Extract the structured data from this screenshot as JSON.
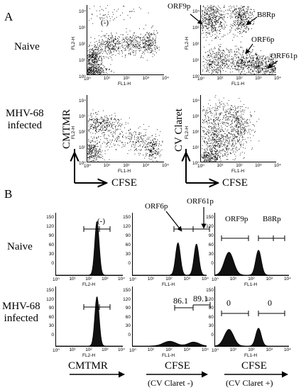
{
  "panel_letters": {
    "a": "A",
    "b": "B"
  },
  "row_labels": {
    "naive": "Naive",
    "infected_line1": "MHV-68",
    "infected_line2": "infected"
  },
  "a_axes": {
    "y_cmtmr": "CMTMR",
    "y_cvclaret": "CV Claret",
    "x_cfse_left": "CFSE",
    "x_cfse_right": "CFSE",
    "fl2": "FL2-H",
    "fl1": "FL1-H",
    "xticks": [
      "10⁰",
      "10¹",
      "10²",
      "10³",
      "10⁴"
    ],
    "yticks": [
      "10⁴",
      "10³",
      "10²",
      "10¹",
      "10⁰"
    ]
  },
  "a_callouts": {
    "neg": "(-)",
    "orf9p": "ORF9p",
    "b8rp": "B8Rp",
    "orf6p": "ORF6p",
    "orf61p": "ORF61p"
  },
  "b_axes": {
    "xticks": [
      "10⁰",
      "10¹",
      "10²",
      "10³",
      "10⁴"
    ],
    "yticks_tall": [
      "150",
      "120",
      "90",
      "60",
      "30",
      "0"
    ],
    "yticks_short": [
      "150",
      "120",
      "90",
      "60",
      "30",
      "0"
    ],
    "fl2": "FL2-H",
    "fl1": "FL1-H",
    "bottom_cmtmr": "CMTMR",
    "bottom_cfse1": "CFSE",
    "bottom_cfse1_sub": "(CV Claret -)",
    "bottom_cfse2": "CFSE",
    "bottom_cfse2_sub": "(CV Claret +)"
  },
  "b_callouts": {
    "neg": "(-)",
    "orf6p": "ORF6p",
    "orf61p": "ORF61p",
    "orf9p": "ORF9p",
    "b8rp": "B8Rp",
    "v861": "86.1",
    "v891": "89.1",
    "zero1": "0",
    "zero2": "0"
  },
  "histograms": [
    {
      "id": "naive-cmtmr",
      "peaks": [
        {
          "log": 2.45,
          "height": 130,
          "width": 0.13
        }
      ]
    },
    {
      "id": "naive-cfse-neg",
      "peaks": [
        {
          "log": 2.45,
          "height": 78,
          "width": 0.13
        },
        {
          "log": 3.45,
          "height": 75,
          "width": 0.13
        }
      ]
    },
    {
      "id": "naive-cfse-pos",
      "peaks": [
        {
          "log": 0.75,
          "height": 55,
          "width": 0.25
        },
        {
          "log": 2.35,
          "height": 60,
          "width": 0.15
        }
      ]
    },
    {
      "id": "inf-cmtmr",
      "peaks": [
        {
          "log": 2.45,
          "height": 125,
          "width": 0.13
        }
      ]
    },
    {
      "id": "inf-cfse-neg",
      "peaks": [
        {
          "log": 2.0,
          "height": 12,
          "width": 0.35
        },
        {
          "log": 3.3,
          "height": 10,
          "width": 0.3
        }
      ]
    },
    {
      "id": "inf-cfse-pos",
      "peaks": [
        {
          "log": 0.75,
          "height": 42,
          "width": 0.25
        },
        {
          "log": 2.35,
          "height": 45,
          "width": 0.15
        }
      ]
    }
  ],
  "scatter_plots": [
    {
      "id": "naive-cmtmr-scatter",
      "clusters": [
        [
          0.3,
          1.0,
          0.25,
          0.35,
          350
        ],
        [
          1.2,
          1.7,
          0.35,
          0.35,
          250
        ],
        [
          2.3,
          1.8,
          0.3,
          0.3,
          200
        ],
        [
          3.2,
          1.8,
          0.25,
          0.35,
          220
        ],
        [
          1.0,
          3.6,
          0.8,
          0.3,
          80
        ],
        [
          0.2,
          0.2,
          0.4,
          0.2,
          400
        ]
      ]
    },
    {
      "id": "naive-cvclaret-scatter",
      "clusters": [
        [
          0.6,
          3.2,
          0.35,
          0.5,
          500
        ],
        [
          2.1,
          3.3,
          0.3,
          0.5,
          400
        ],
        [
          0.8,
          0.7,
          0.4,
          0.45,
          350
        ],
        [
          2.2,
          0.7,
          0.3,
          0.4,
          300
        ],
        [
          3.0,
          0.6,
          0.25,
          0.35,
          250
        ],
        [
          3.7,
          0.5,
          0.2,
          0.3,
          200
        ]
      ]
    },
    {
      "id": "inf-cmtmr-scatter",
      "clusters": [
        [
          0.7,
          2.3,
          0.5,
          0.3,
          300
        ],
        [
          0.2,
          0.6,
          0.3,
          0.4,
          350
        ],
        [
          1.6,
          1.5,
          0.5,
          0.4,
          120
        ],
        [
          2.7,
          1.2,
          0.3,
          0.4,
          120
        ],
        [
          3.4,
          0.8,
          0.2,
          0.35,
          180
        ]
      ]
    },
    {
      "id": "inf-cvclaret-scatter",
      "clusters": [
        [
          0.7,
          1.6,
          0.35,
          0.6,
          350
        ],
        [
          2.0,
          2.2,
          0.35,
          0.5,
          300
        ],
        [
          0.5,
          0.3,
          0.35,
          0.3,
          300
        ],
        [
          1.6,
          1.1,
          0.4,
          0.4,
          150
        ],
        [
          1.0,
          3.0,
          0.6,
          0.4,
          150
        ]
      ]
    }
  ]
}
